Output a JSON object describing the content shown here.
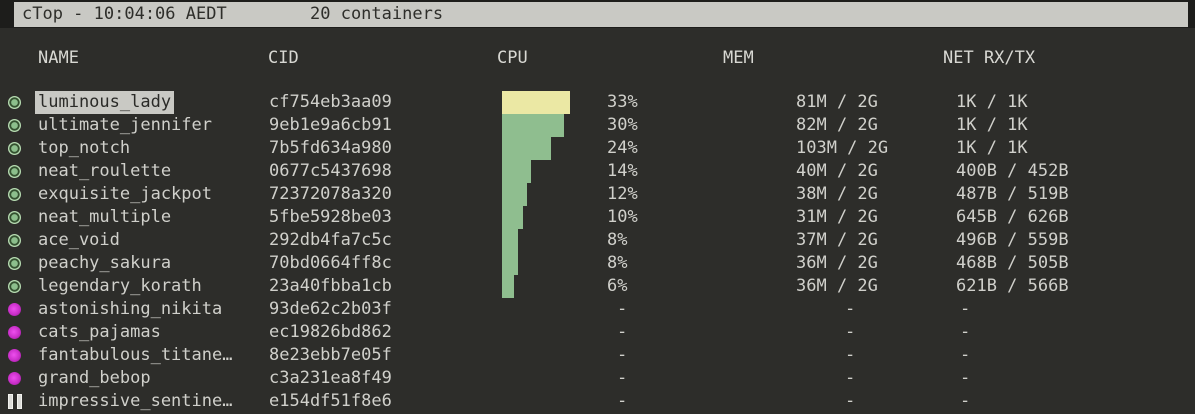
{
  "app": {
    "name": "cTop",
    "title_left": "cTop - 10:04:06 AEDT",
    "title_right": "20 containers"
  },
  "table": {
    "columns": {
      "name": "NAME",
      "cid": "CID",
      "cpu": "CPU",
      "mem": "MEM",
      "net": "NET RX/TX"
    },
    "rows": [
      {
        "status": "running",
        "selected": true,
        "name": "luminous_lady",
        "cid": "cf754eb3aa09",
        "cpu": "33%",
        "cpu_pct": 33,
        "bar_color": "yellow",
        "mem": "81M / 2G",
        "net": "1K / 1K"
      },
      {
        "status": "running",
        "selected": false,
        "name": "ultimate_jennifer",
        "cid": "9eb1e9a6cb91",
        "cpu": "30%",
        "cpu_pct": 30,
        "bar_color": "green",
        "mem": "82M / 2G",
        "net": "1K / 1K"
      },
      {
        "status": "running",
        "selected": false,
        "name": "top_notch",
        "cid": "7b5fd634a980",
        "cpu": "24%",
        "cpu_pct": 24,
        "bar_color": "green",
        "mem": "103M / 2G",
        "net": "1K / 1K"
      },
      {
        "status": "running",
        "selected": false,
        "name": "neat_roulette",
        "cid": "0677c5437698",
        "cpu": "14%",
        "cpu_pct": 14,
        "bar_color": "green",
        "mem": "40M / 2G",
        "net": "400B / 452B"
      },
      {
        "status": "running",
        "selected": false,
        "name": "exquisite_jackpot",
        "cid": "72372078a320",
        "cpu": "12%",
        "cpu_pct": 12,
        "bar_color": "green",
        "mem": "38M / 2G",
        "net": "487B / 519B"
      },
      {
        "status": "running",
        "selected": false,
        "name": "neat_multiple",
        "cid": "5fbe5928be03",
        "cpu": "10%",
        "cpu_pct": 10,
        "bar_color": "green",
        "mem": "31M / 2G",
        "net": "645B / 626B"
      },
      {
        "status": "running",
        "selected": false,
        "name": "ace_void",
        "cid": "292db4fa7c5c",
        "cpu": "8%",
        "cpu_pct": 8,
        "bar_color": "green",
        "mem": "37M / 2G",
        "net": "496B / 559B"
      },
      {
        "status": "running",
        "selected": false,
        "name": "peachy_sakura",
        "cid": "70bd0664ff8c",
        "cpu": "8%",
        "cpu_pct": 8,
        "bar_color": "green",
        "mem": "36M / 2G",
        "net": "468B / 505B"
      },
      {
        "status": "running",
        "selected": false,
        "name": "legendary_korath",
        "cid": "23a40fbba1cb",
        "cpu": "6%",
        "cpu_pct": 6,
        "bar_color": "green",
        "mem": "36M / 2G",
        "net": "621B / 566B"
      },
      {
        "status": "exited",
        "selected": false,
        "name": "astonishing_nikita",
        "cid": "93de62c2b03f",
        "cpu": "-",
        "cpu_pct": null,
        "bar_color": null,
        "mem": "-",
        "net": "-"
      },
      {
        "status": "exited",
        "selected": false,
        "name": "cats_pajamas",
        "cid": "ec19826bd862",
        "cpu": "-",
        "cpu_pct": null,
        "bar_color": null,
        "mem": "-",
        "net": "-"
      },
      {
        "status": "exited",
        "selected": false,
        "name": "fantabulous_titane…",
        "cid": "8e23ebb7e05f",
        "cpu": "-",
        "cpu_pct": null,
        "bar_color": null,
        "mem": "-",
        "net": "-"
      },
      {
        "status": "exited",
        "selected": false,
        "name": "grand_bebop",
        "cid": "c3a231ea8f49",
        "cpu": "-",
        "cpu_pct": null,
        "bar_color": null,
        "mem": "-",
        "net": "-"
      },
      {
        "status": "paused",
        "selected": false,
        "name": "impressive_sentine…",
        "cid": "e154df51f8e6",
        "cpu": "-",
        "cpu_pct": null,
        "bar_color": null,
        "mem": "-",
        "net": "-"
      }
    ]
  },
  "colors": {
    "background": "#2d2d2a",
    "titlebar_bg": "#c9c9c4",
    "titlebar_text": "#2e2e2a",
    "text": "#d0d0cb",
    "selected_bg": "#c9c9c4",
    "selected_text": "#2b2b28",
    "bar_green": "#8fbe8f",
    "bar_yellow": "#ebe8a4",
    "status_running_green": "#8cbf8c",
    "status_exited_magenta": "#c92fc9",
    "status_paused_gray": "#dcdcd8"
  }
}
